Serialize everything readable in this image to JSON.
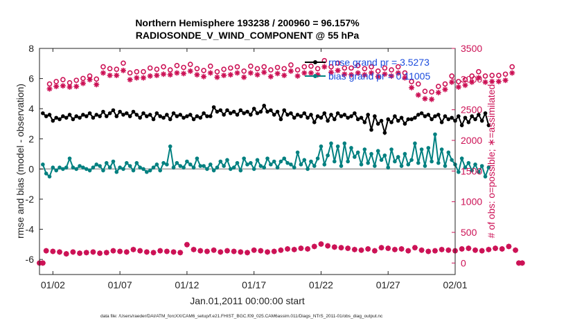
{
  "chart_data": {
    "type": "line",
    "title": "Northern Hemisphere 193238 / 200960 = 96.157%",
    "subtitle": "RADIOSONDE_V_WIND_COMPONENT @ 55 hPa",
    "xlabel": "Jan.01,2011 00:00:00 start",
    "ylabel_left": "rmse and bias (model - observation)",
    "ylabel_right": "# of obs: o=possible; ∗=assimilated",
    "footer": "data file: /Users/raeder/DAI/ATM_forcXX/CAM6_setup/f.e21.FHIST_BGC.f09_025.CAM6assim.011/Diags_NTrS_2011-01/obs_diag_output.nc",
    "xlim": [
      0,
      31
    ],
    "ylim_left": [
      -7,
      8
    ],
    "ylim_right": [
      -187.5,
      3500
    ],
    "x_ticks": [
      1,
      6,
      11,
      16,
      21,
      26,
      31
    ],
    "x_tick_labels": [
      "01/02",
      "01/07",
      "01/12",
      "01/17",
      "01/22",
      "01/27",
      "02/01"
    ],
    "y_ticks_left": [
      -6,
      -4,
      -2,
      0,
      2,
      4,
      6,
      8
    ],
    "y_ticks_right": [
      0,
      500,
      1000,
      1500,
      2000,
      2500,
      3000,
      3500
    ],
    "legend": {
      "position": "top-right",
      "entries": [
        "rmse grand pr = 3.5273",
        "bias grand pr = 0.11005"
      ]
    },
    "colors": {
      "rmse": "#000000",
      "bias": "#008080",
      "obs": "#cc1155",
      "legend_text": "#1a4bdd",
      "zero_line": "#b0b0b0"
    },
    "series": [
      {
        "name": "rmse grand pr = 3.5273",
        "axis": "left",
        "x_start": 0.25,
        "x_step": 0.25,
        "values": [
          3.7,
          3.5,
          3.6,
          3.2,
          3.4,
          3.3,
          3.5,
          3.4,
          3.6,
          3.3,
          3.5,
          3.4,
          3.6,
          3.5,
          3.7,
          3.4,
          3.6,
          3.5,
          3.8,
          3.5,
          3.7,
          3.9,
          3.5,
          3.8,
          3.6,
          3.7,
          3.5,
          3.8,
          3.6,
          3.4,
          3.7,
          3.5,
          3.6,
          3.3,
          3.7,
          3.5,
          3.4,
          3.6,
          3.3,
          3.7,
          3.5,
          3.6,
          3.4,
          3.5,
          3.6,
          3.3,
          3.5,
          3.4,
          3.7,
          3.5,
          3.5,
          4.1,
          3.8,
          3.9,
          3.6,
          3.9,
          3.7,
          3.8,
          3.6,
          3.9,
          3.7,
          3.8,
          3.6,
          4.0,
          3.7,
          3.8,
          4.2,
          3.8,
          3.9,
          3.6,
          3.8,
          3.3,
          3.9,
          3.6,
          3.7,
          3.4,
          3.6,
          3.5,
          3.7,
          3.4,
          3.6,
          3.1,
          3.5,
          3.4,
          3.7,
          3.2,
          3.6,
          3.3,
          3.7,
          3.5,
          3.6,
          3.4,
          3.5,
          3.7,
          3.3,
          3.4,
          3.1,
          3.6,
          2.6,
          3.5,
          3.0,
          3.2,
          2.4,
          3.3,
          3.1,
          3.5,
          3.2,
          3.4,
          3.0,
          3.3,
          3.3,
          3.4,
          3.6,
          3.7,
          3.5,
          3.6,
          3.3,
          3.5,
          3.6,
          3.1,
          3.5,
          3.3,
          3.4,
          3.2,
          3.5,
          2.9,
          3.4,
          3.1,
          3.5,
          3.3,
          3.6,
          3.2,
          3.7,
          2.9
        ]
      },
      {
        "name": "bias grand pr = 0.11005",
        "axis": "left",
        "x_start": 0.25,
        "x_step": 0.25,
        "values": [
          0.3,
          -0.3,
          -0.5,
          0.1,
          -0.1,
          0.1,
          0.0,
          0.1,
          0.7,
          0.1,
          0.0,
          0.2,
          0.1,
          0.0,
          -0.1,
          0.1,
          0.3,
          0.2,
          -0.1,
          0.4,
          0.1,
          0.5,
          -0.2,
          0.1,
          0.0,
          0.4,
          0.2,
          -0.1,
          0.4,
          0.1,
          0.0,
          -0.2,
          -0.1,
          0.1,
          0.3,
          -0.1,
          0.4,
          0.3,
          1.5,
          0.1,
          0.4,
          0.2,
          0.1,
          0.5,
          0.3,
          0.1,
          0.7,
          0.2,
          0.2,
          0.0,
          0.3,
          -0.1,
          0.1,
          0.5,
          0.2,
          0.6,
          0.0,
          0.1,
          0.4,
          -0.1,
          0.7,
          0.3,
          0.4,
          0.0,
          0.6,
          0.2,
          0.1,
          0.7,
          0.3,
          0.5,
          0.1,
          0.5,
          0.7,
          0.4,
          0.3,
          0.1,
          1.1,
          0.3,
          0.6,
          0.0,
          0.5,
          0.2,
          0.7,
          1.5,
          0.3,
          0.9,
          1.7,
          0.5,
          1.5,
          0.2,
          1.7,
          0.5,
          1.4,
          0.8,
          1.1,
          0.3,
          1.3,
          0.4,
          1.0,
          0.2,
          1.2,
          0.6,
          0.9,
          0.1,
          1.3,
          0.5,
          0.8,
          0.2,
          1.0,
          0.3,
          0.6,
          1.7,
          0.4,
          1.3,
          0.2,
          1.4,
          0.5,
          2.3,
          0.4,
          1.3,
          0.2,
          1.1,
          0.6,
          0.3,
          -0.2,
          0.7,
          0.1,
          0.4,
          -0.1,
          0.3,
          -0.2,
          0.2,
          -0.5,
          0.1
        ]
      },
      {
        "name": "possible",
        "axis": "right",
        "marker": "o",
        "x_start": 0.25,
        "x_step": 0.5,
        "values": [
          0,
          2920,
          2960,
          2990,
          2940,
          2980,
          3010,
          3050,
          3000,
          3200,
          3170,
          3160,
          3260,
          3100,
          3120,
          3120,
          3180,
          3160,
          3200,
          3150,
          3220,
          3190,
          3240,
          3170,
          3140,
          3210,
          3120,
          3160,
          3180,
          3200,
          3130,
          3210,
          3170,
          3200,
          3150,
          3190,
          3170,
          3230,
          3150,
          3200,
          3210,
          3170,
          3300,
          3200,
          3260,
          3180,
          3180,
          3220,
          3170,
          3200,
          3130,
          3180,
          3150,
          3200,
          3100,
          2960,
          2920,
          2800,
          2790,
          2880,
          2920,
          3050,
          2960,
          2990,
          3050,
          3120,
          3050,
          3060,
          3060,
          3080,
          3200,
          0
        ]
      },
      {
        "name": "assimilated",
        "axis": "right",
        "marker": "*",
        "x_start": 0.25,
        "x_step": 0.5,
        "values": [
          0,
          2840,
          2880,
          2890,
          2870,
          2880,
          2930,
          2990,
          2910,
          3100,
          3060,
          3060,
          3140,
          2990,
          3020,
          3020,
          3050,
          3060,
          3080,
          3070,
          3100,
          3090,
          3130,
          3070,
          3040,
          3100,
          3030,
          3060,
          3070,
          3100,
          3030,
          3100,
          3070,
          3110,
          3040,
          3090,
          3060,
          3130,
          3050,
          3100,
          3100,
          3070,
          3200,
          3110,
          3140,
          3080,
          3070,
          3100,
          3070,
          3100,
          3040,
          3080,
          3050,
          3100,
          3020,
          2860,
          2740,
          2680,
          2670,
          2780,
          2830,
          2950,
          2870,
          2900,
          2950,
          3020,
          2950,
          2960,
          2960,
          2980,
          3100,
          0
        ]
      },
      {
        "name": "",
        "axis": "right",
        "marker": "o",
        "x_start": 0.0,
        "x_step": 0.5,
        "values": [
          0,
          200,
          190,
          180,
          150,
          180,
          160,
          170,
          180,
          160,
          170,
          200,
          190,
          180,
          220,
          200,
          180,
          170,
          200,
          190,
          180,
          170,
          300,
          220,
          200,
          190,
          210,
          180,
          200,
          190,
          180,
          170,
          210,
          200,
          180,
          190,
          210,
          230,
          220,
          240,
          230,
          270,
          310,
          280,
          260,
          250,
          240,
          220,
          210,
          230,
          200,
          250,
          240,
          220,
          230,
          200,
          250,
          210,
          190,
          200,
          220,
          210,
          200,
          230,
          240,
          210,
          200,
          220,
          240,
          230,
          270,
          210,
          0
        ]
      },
      {
        "name": "",
        "axis": "right",
        "marker": "*",
        "x_start": 0.0,
        "x_step": 0.5,
        "values": [
          0,
          200,
          190,
          180,
          150,
          180,
          160,
          170,
          180,
          160,
          170,
          200,
          190,
          180,
          220,
          200,
          180,
          170,
          200,
          190,
          180,
          170,
          300,
          220,
          200,
          190,
          210,
          180,
          200,
          190,
          180,
          170,
          210,
          200,
          180,
          190,
          210,
          230,
          220,
          240,
          230,
          270,
          310,
          280,
          260,
          250,
          240,
          220,
          210,
          230,
          200,
          250,
          240,
          220,
          230,
          200,
          250,
          210,
          190,
          200,
          220,
          210,
          200,
          230,
          240,
          210,
          200,
          220,
          240,
          230,
          270,
          210,
          0
        ]
      }
    ]
  }
}
